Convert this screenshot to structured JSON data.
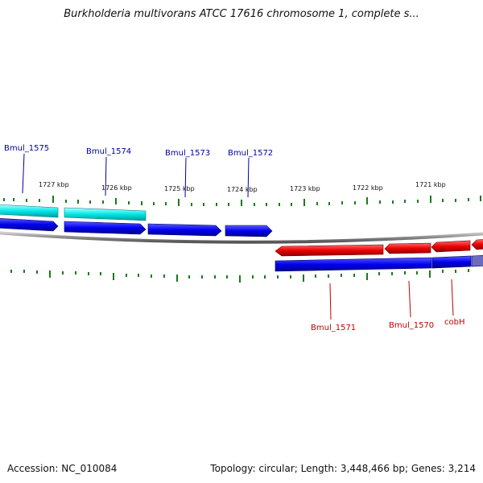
{
  "title": "Burkholderia multivorans ATCC 17616 chromosome 1, complete s...",
  "accession": "Accession: NC_010084",
  "summary": "Topology: circular; Length: 3,448,466 bp; Genes: 3,214",
  "scale": {
    "labels": [
      "1727 kbp",
      "1726 kbp",
      "1725 kbp",
      "1724 kbp",
      "1723 kbp",
      "1722 kbp",
      "1721 kbp"
    ]
  },
  "genes_top": [
    {
      "name": "Bmul_1575",
      "label": "Bmul_1575"
    },
    {
      "name": "Bmul_1574",
      "label": "Bmul_1574"
    },
    {
      "name": "Bmul_1573",
      "label": "Bmul_1573"
    },
    {
      "name": "Bmul_1572",
      "label": "Bmul_1572"
    }
  ],
  "genes_bottom": [
    {
      "name": "Bmul_1571",
      "label": "Bmul_1571"
    },
    {
      "name": "Bmul_1570",
      "label": "Bmul_1570"
    },
    {
      "name": "cobH",
      "label": "cobH"
    }
  ],
  "colors": {
    "forward_gene": "#0000ee",
    "forward_rna": "#00e5e5",
    "reverse_gene": "#ee0000",
    "backbone": "#888888",
    "ticks": "#1a7a1a",
    "label_top": "#00009c",
    "label_bottom": "#c00000"
  }
}
